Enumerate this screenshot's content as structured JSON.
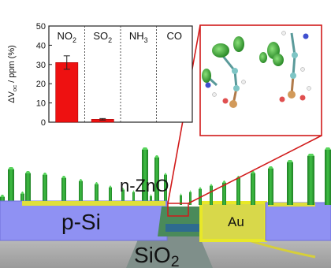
{
  "scene": {
    "labels": {
      "nanowire": "n-ZnO",
      "left_block": "p-Si",
      "right_electrode": "Au",
      "substrate_main": "SiO",
      "substrate_sub": "2"
    },
    "colors": {
      "p_si": "#8f91f3",
      "au": "#d8d84a",
      "au_border": "#e8e828",
      "nanowire": "#34a838",
      "substrate": "#b9b9b9",
      "highlight": "#d11a1a"
    }
  },
  "chart_data": {
    "type": "bar",
    "categories_main": [
      "NO",
      "SO",
      "NH",
      "CO"
    ],
    "categories_sub": [
      "2",
      "2",
      "3",
      ""
    ],
    "values": [
      31,
      1.5,
      0,
      0
    ],
    "errors": [
      3.5,
      0.4,
      0,
      0
    ],
    "ylabel_main": "ΔV",
    "ylabel_sub": "oc",
    "ylabel_rest": " / ppm (%)",
    "ylim": [
      0,
      50
    ],
    "yticks": [
      "0",
      "10",
      "20",
      "30",
      "40",
      "50"
    ],
    "bar_color": "#ee1111"
  }
}
